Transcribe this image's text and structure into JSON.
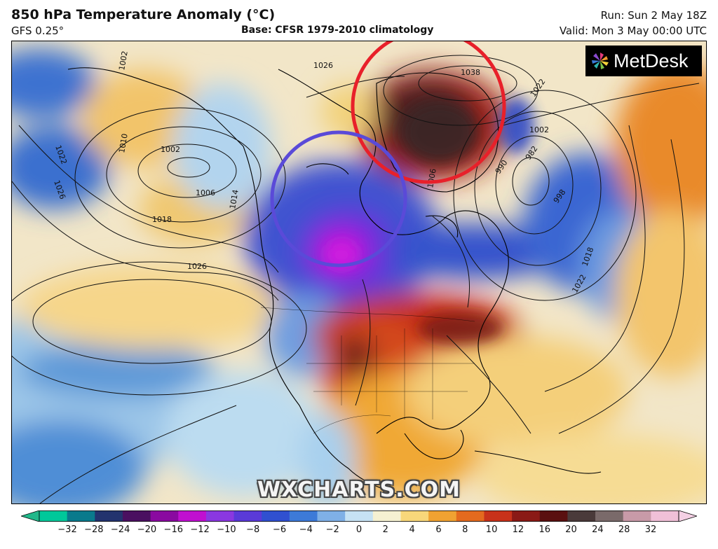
{
  "header": {
    "title": "850 hPa Temperature Anomaly (°C)",
    "model": "GFS 0.25°",
    "base": "Base: CFSR 1979-2010 climatology",
    "run": "Run: Sun 2 May 18Z",
    "valid": "Valid: Mon 3 May 00:00 UTC"
  },
  "logo": {
    "text": "MetDesk"
  },
  "watermark": "WXCHARTS.COM",
  "isobars": [
    {
      "label": "1002"
    },
    {
      "label": "1002"
    },
    {
      "label": "1006"
    },
    {
      "label": "1010"
    },
    {
      "label": "1014"
    },
    {
      "label": "1018"
    },
    {
      "label": "1022"
    },
    {
      "label": "1026"
    },
    {
      "label": "1026"
    },
    {
      "label": "1026"
    },
    {
      "label": "1038"
    },
    {
      "label": "1022"
    },
    {
      "label": "1002"
    },
    {
      "label": "990"
    },
    {
      "label": "982"
    },
    {
      "label": "998"
    },
    {
      "label": "1018"
    },
    {
      "label": "1022"
    },
    {
      "label": "1006"
    }
  ],
  "colorbar": {
    "ticks": [
      "−32",
      "−28",
      "−24",
      "−20",
      "−16",
      "−12",
      "−10",
      "−8",
      "−6",
      "−4",
      "−2",
      "0",
      "2",
      "4",
      "6",
      "8",
      "10",
      "12",
      "16",
      "20",
      "24",
      "28",
      "32"
    ],
    "colors": [
      "#00c89a",
      "#0a7a8c",
      "#23336e",
      "#4a1060",
      "#8a0aa0",
      "#c010d0",
      "#8a38e0",
      "#5a3ad8",
      "#3050d0",
      "#3d7ad8",
      "#7fb0e6",
      "#c6e2f4",
      "#f6f1d2",
      "#f8d77a",
      "#f0a232",
      "#e46a1e",
      "#c8321a",
      "#8a1a16",
      "#5a1010",
      "#4a3a3a",
      "#7a6a6a",
      "#c89aa8",
      "#f0c0d8"
    ],
    "arrow_left": "#22b88a",
    "arrow_right": "#f4d0e4"
  },
  "annotations": [
    {
      "name": "red-circle",
      "color": "#e8202a"
    },
    {
      "name": "blue-circle",
      "color": "#5a4ad8"
    }
  ]
}
